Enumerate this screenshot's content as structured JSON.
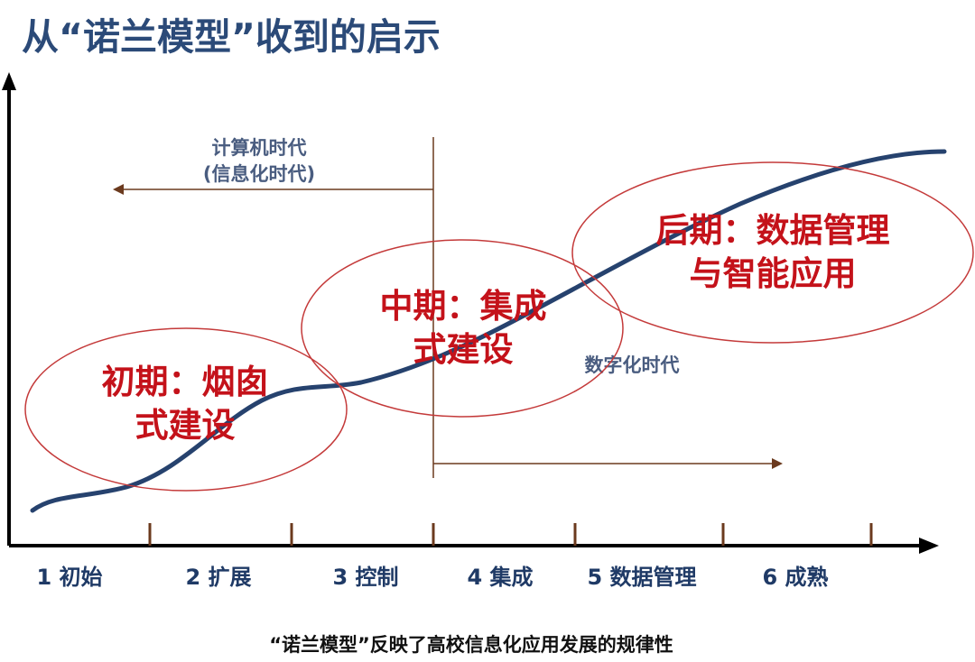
{
  "title": "从“诺兰模型”收到的启示",
  "eras": {
    "computer_line1": "计算机时代",
    "computer_line2": "(信息化时代)",
    "digital": "数字化时代"
  },
  "phases": {
    "early_line1": "初期：烟囱",
    "early_line2": "式建设",
    "middle_line1": "中期：集成",
    "middle_line2": "式建设",
    "late_line1": "后期：数据管理",
    "late_line2": "与智能应用"
  },
  "stages": [
    "1 初始",
    "2 扩展",
    "3 控制",
    "4 集成",
    "5 数据管理",
    "6 成熟"
  ],
  "caption": "“诺兰模型”反映了高校信息化应用发展的规律性",
  "colors": {
    "title": "#2b4a78",
    "curve": "#26426e",
    "axis": "#000000",
    "ellipse": "#c43a3a",
    "phase_text": "#c4121a",
    "arrow": "#6b3a1e",
    "tick": "#6b3a1e"
  }
}
